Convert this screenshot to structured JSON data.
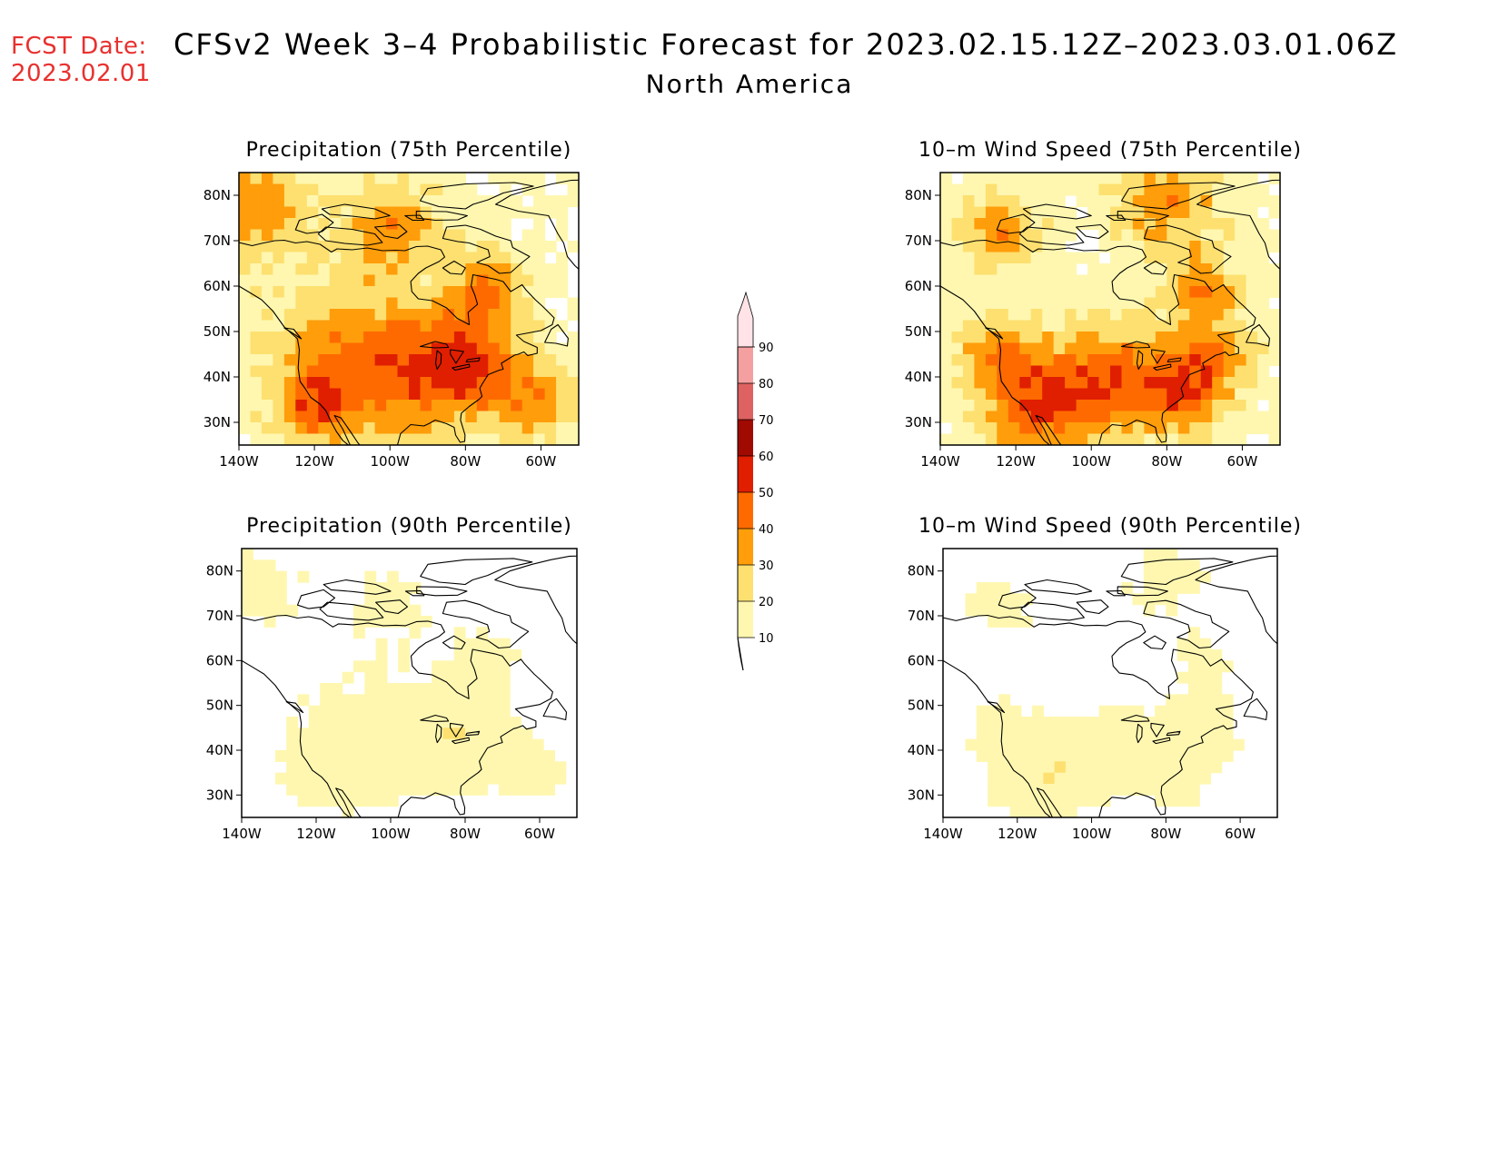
{
  "header": {
    "fcst_label": "FCST Date:",
    "fcst_date": "2023.02.01",
    "title": "CFSv2 Week 3–4 Probabilistic Forecast for 2023.02.15.12Z–2023.03.01.06Z",
    "region": "North America"
  },
  "colorbar": {
    "levels": [
      10,
      20,
      30,
      40,
      50,
      60,
      70,
      80,
      90
    ],
    "level_labels": [
      "10",
      "20",
      "30",
      "40",
      "50",
      "60",
      "70",
      "80",
      "90"
    ],
    "colors": [
      "#fff7b0",
      "#fde070",
      "#ff9d0a",
      "#ff6a00",
      "#e01e00",
      "#a00a00",
      "#de6262",
      "#f5a0a0",
      "#ffe3e6"
    ]
  },
  "axes": {
    "lat_labels": [
      "80N",
      "70N",
      "60N",
      "50N",
      "40N",
      "30N"
    ],
    "lon_labels": [
      "140W",
      "120W",
      "100W",
      "80W",
      "60W"
    ]
  },
  "panels": [
    {
      "id": "precip-75",
      "title": "Precipitation (75th Percentile)",
      "intensity": 2.6,
      "pattern": "precip"
    },
    {
      "id": "wind-75",
      "title": "10–m Wind Speed (75th Percentile)",
      "intensity": 2.6,
      "pattern": "wind"
    },
    {
      "id": "precip-90",
      "title": "Precipitation (90th Percentile)",
      "intensity": 0.9,
      "pattern": "precip"
    },
    {
      "id": "wind-90",
      "title": "10–m Wind Speed (90th Percentile)",
      "intensity": 0.9,
      "pattern": "wind"
    }
  ]
}
